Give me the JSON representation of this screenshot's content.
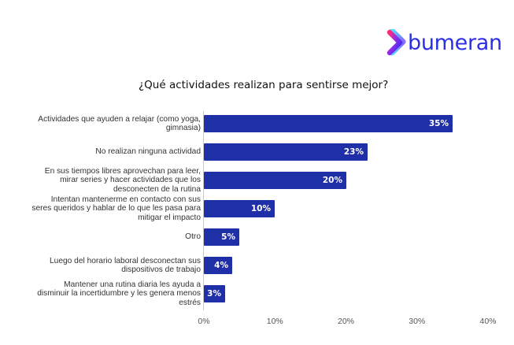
{
  "brand": {
    "logo_text": "bumeran",
    "logo_icon": "chevron-right-gradient-icon",
    "brand_color": "#2b2fe0"
  },
  "chart_data": {
    "type": "bar",
    "orientation": "horizontal",
    "title": "¿Qué actividades realizan para sentirse mejor?",
    "xlabel": "",
    "ylabel": "",
    "xlim": [
      0,
      40
    ],
    "x_ticks": [
      "0%",
      "10%",
      "20%",
      "30%",
      "40%"
    ],
    "grid": false,
    "legend": "none",
    "bar_color": "#1f2fa8",
    "categories": [
      "Actividades que ayuden a relajar (como yoga, gimnasia)",
      "No realizan ninguna actividad",
      "En sus tiempos libres aprovechan para leer, mirar series y hacer actividades que los desconecten de la rutina",
      "Intentan mantenerme en contacto con sus seres queridos y hablar de lo que les pasa para mitigar el impacto",
      "Otro",
      "Luego del horario laboral desconectan sus dispositivos de trabajo",
      "Mantener una rutina diaria les ayuda a disminuir la incertidumbre y les genera menos estrés"
    ],
    "values": [
      35,
      23,
      20,
      10,
      5,
      4,
      3
    ],
    "value_labels": [
      "35%",
      "23%",
      "20%",
      "10%",
      "5%",
      "4%",
      "3%"
    ]
  },
  "rows": [
    {
      "label_lines": [
        "Actividades que ayuden a relajar (como yoga,",
        "gimnasia)"
      ],
      "value": 35,
      "value_label": "35%"
    },
    {
      "label_lines": [
        "No realizan ninguna actividad"
      ],
      "value": 23,
      "value_label": "23%"
    },
    {
      "label_lines": [
        "En sus tiempos libres aprovechan para leer,",
        "mirar series y hacer actividades que los",
        "desconecten de la rutina"
      ],
      "value": 20,
      "value_label": "20%"
    },
    {
      "label_lines": [
        "Intentan mantenerme en contacto con sus",
        "seres queridos y hablar de lo que les pasa para",
        "mitigar el impacto"
      ],
      "value": 10,
      "value_label": "10%"
    },
    {
      "label_lines": [
        "Otro"
      ],
      "value": 5,
      "value_label": "5%"
    },
    {
      "label_lines": [
        "Luego del horario laboral desconectan sus",
        "dispositivos de trabajo"
      ],
      "value": 4,
      "value_label": "4%"
    },
    {
      "label_lines": [
        "Mantener una rutina diaria les ayuda a",
        "disminuir la incertidumbre y les genera menos",
        "estrés"
      ],
      "value": 3,
      "value_label": "3%"
    }
  ]
}
